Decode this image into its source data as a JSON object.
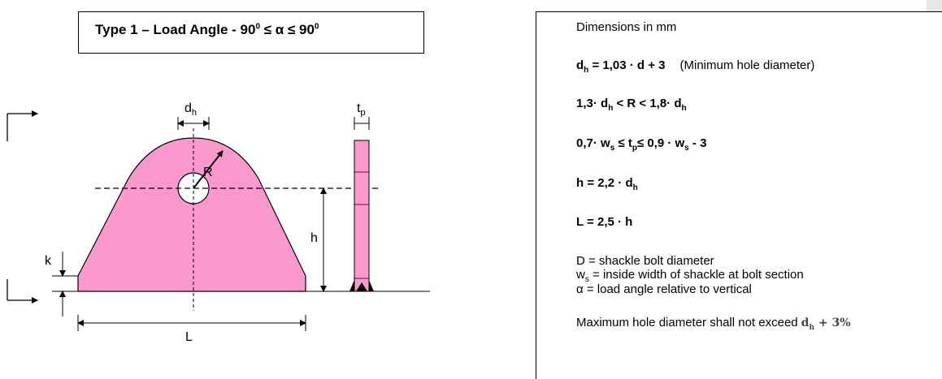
{
  "title": {
    "prefix": "Type 1 – Load Angle  - 90",
    "sup1": "0",
    "middle": " ≤ α ≤ 90",
    "sup2": "0"
  },
  "diagram": {
    "dh_label": "d",
    "dh_sub": "h",
    "tp_label": "t",
    "tp_sub": "p",
    "r_label": "R",
    "h_label": "h",
    "k_label": "k",
    "l_label": "L",
    "fill_color": "#fc99cc"
  },
  "spec": {
    "units": "Dimensions in mm",
    "f1": {
      "a": "d",
      "a_sub": "h",
      "b": " = 1,03 · d + 3",
      "note": "(Minimum hole diameter)"
    },
    "f2": {
      "a": "1,3· d",
      "a_sub": "h",
      "b": "  < R <  1,8· d",
      "b_sub": "h"
    },
    "f3": {
      "a": "0,7· w",
      "a_sub": "s",
      "b": "  ≤  t",
      "b_sub": "p",
      "c": "≤ 0,9 · w",
      "c_sub": "s",
      "d": " - 3"
    },
    "f4": {
      "a": "h =  2,2 · d",
      "a_sub": "h"
    },
    "f5": {
      "a": "L = 2,5 · h"
    },
    "def1": "D = shackle bolt diameter",
    "def2_a": "w",
    "def2_sub": "s",
    "def2_b": " = inside width of shackle at bolt section",
    "def3": "α = load angle relative to vertical",
    "max_text": "Maximum hole diameter shall not exceed",
    "max_formula_a": "d",
    "max_formula_sub": "h",
    "max_formula_b": " + 3%"
  }
}
